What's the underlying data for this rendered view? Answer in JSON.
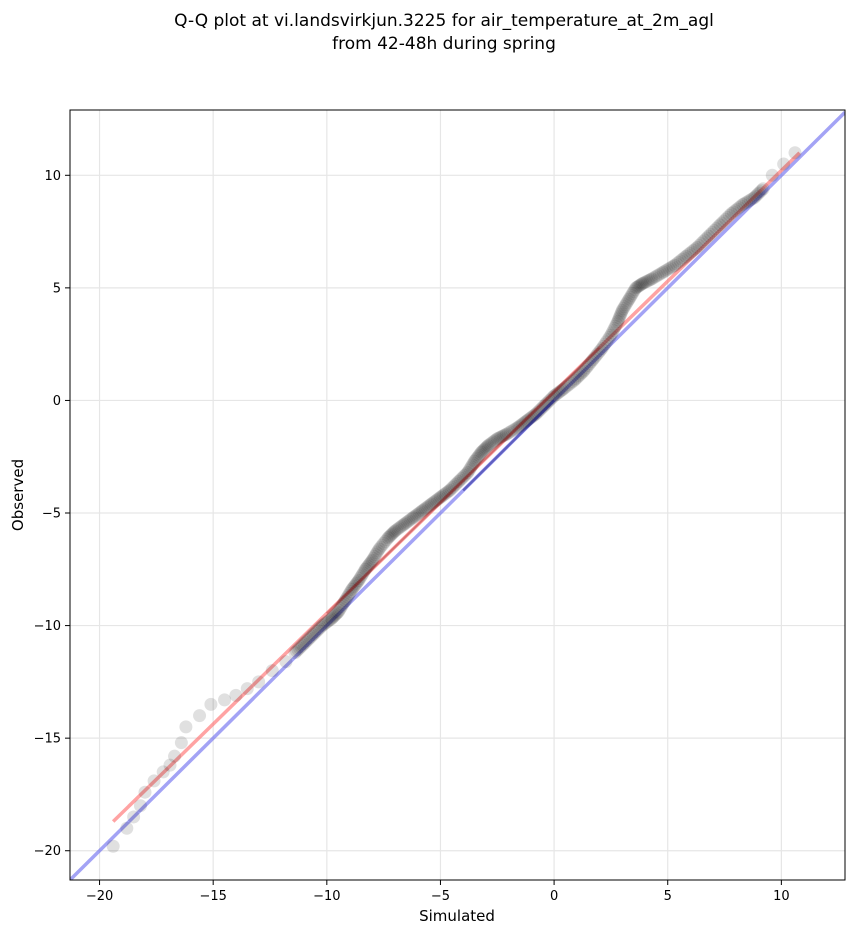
{
  "chart_data": {
    "type": "scatter",
    "title_lines": [
      "Q-Q plot at vi.landsvirkjun.3225 for air_temperature_at_2m_agl",
      "from 42-48h during spring"
    ],
    "xlabel": "Simulated",
    "ylabel": "Observed",
    "xlim": [
      -21.3,
      12.8
    ],
    "ylim": [
      -21.3,
      12.9
    ],
    "xticks": [
      -20,
      -15,
      -10,
      -5,
      0,
      5,
      10
    ],
    "yticks": [
      -20,
      -15,
      -10,
      -5,
      0,
      5,
      10
    ],
    "grid": true,
    "colors": {
      "points": "#000000",
      "fit_line": "#ff6666",
      "identity_line": "#6666ee",
      "grid": "#e6e6e6"
    },
    "series": [
      {
        "kind": "quantile-points",
        "x": [
          -19.4,
          -18.8,
          -18.5,
          -18.2,
          -18.0,
          -17.6,
          -17.2,
          -16.9,
          -16.7,
          -16.4,
          -16.2,
          -15.6,
          -15.1,
          -14.5,
          -14.0,
          -13.5,
          -13.0,
          -12.4,
          -11.8,
          -11.4,
          -11.0,
          -10.6,
          -10.2,
          -9.8,
          -9.5,
          -9.2,
          -8.9,
          -8.6,
          -8.3,
          -8.0,
          -7.7,
          -7.3,
          -7.0,
          -6.6,
          -6.2,
          -5.8,
          -5.4,
          -5.0,
          -4.6,
          -4.2,
          -3.8,
          -3.5,
          -3.2,
          -2.9,
          -2.5,
          -2.1,
          -1.6,
          -1.2,
          -0.8,
          -0.4,
          0.0,
          0.4,
          0.9,
          1.3,
          1.7,
          2.1,
          2.5,
          2.8,
          3.0,
          3.3,
          3.6,
          3.9,
          4.3,
          4.8,
          5.3,
          5.8,
          6.3,
          6.8,
          7.3,
          7.8,
          8.3,
          8.8,
          9.2,
          9.6,
          10.1,
          10.6
        ],
        "y": [
          -19.8,
          -19.0,
          -18.5,
          -18.0,
          -17.4,
          -16.9,
          -16.5,
          -16.2,
          -15.8,
          -15.2,
          -14.5,
          -14.0,
          -13.5,
          -13.3,
          -13.1,
          -12.8,
          -12.5,
          -12.0,
          -11.6,
          -11.2,
          -10.8,
          -10.4,
          -10.0,
          -9.7,
          -9.4,
          -8.9,
          -8.4,
          -8.0,
          -7.5,
          -7.1,
          -6.6,
          -6.1,
          -5.8,
          -5.5,
          -5.2,
          -4.9,
          -4.6,
          -4.3,
          -4.0,
          -3.6,
          -3.2,
          -2.7,
          -2.3,
          -2.0,
          -1.7,
          -1.5,
          -1.2,
          -0.9,
          -0.6,
          -0.2,
          0.2,
          0.5,
          0.9,
          1.3,
          1.8,
          2.3,
          2.9,
          3.5,
          4.0,
          4.5,
          5.0,
          5.2,
          5.4,
          5.7,
          6.0,
          6.4,
          6.8,
          7.3,
          7.8,
          8.3,
          8.7,
          9.0,
          9.4,
          10.0,
          10.5,
          11.0
        ]
      },
      {
        "kind": "fit-line",
        "x": [
          -19.4,
          10.8
        ],
        "y": [
          -18.7,
          11.0
        ]
      },
      {
        "kind": "identity-line",
        "x": [
          -21.3,
          12.8
        ],
        "y": [
          -21.3,
          12.8
        ]
      }
    ]
  }
}
